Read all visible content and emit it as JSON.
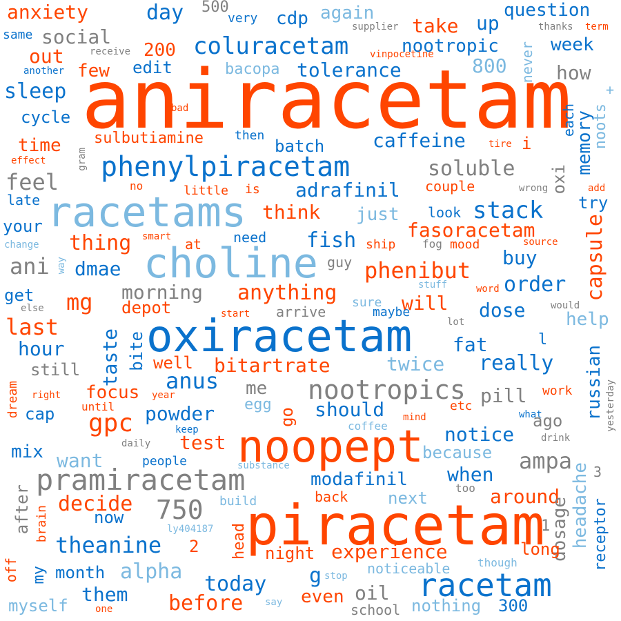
{
  "colors": {
    "orange": "#ff4500",
    "blue": "#0a72cc",
    "light_blue": "#7cb9e0",
    "gray": "#808080"
  },
  "words": [
    {
      "text": "aniracetam",
      "color": "orange"
    },
    {
      "text": "piracetam",
      "color": "orange"
    },
    {
      "text": "noopept",
      "color": "orange"
    },
    {
      "text": "oxiracetam",
      "color": "blue"
    },
    {
      "text": "choline",
      "color": "light_blue"
    },
    {
      "text": "racetams",
      "color": "light_blue"
    },
    {
      "text": "racetam",
      "color": "blue"
    },
    {
      "text": "pramiracetam",
      "color": "gray"
    },
    {
      "text": "phenylpiracetam",
      "color": "blue"
    },
    {
      "text": "nootropics",
      "color": "gray"
    },
    {
      "text": "coluracetam",
      "color": "blue"
    },
    {
      "text": "capsule",
      "color": "orange"
    },
    {
      "text": "russian",
      "color": "blue"
    },
    {
      "text": "gpc",
      "color": "orange"
    },
    {
      "text": "750",
      "color": "gray"
    },
    {
      "text": "anxiety",
      "color": "orange"
    },
    {
      "text": "day",
      "color": "blue"
    },
    {
      "text": "cdp",
      "color": "blue"
    },
    {
      "text": "again",
      "color": "light_blue"
    },
    {
      "text": "take",
      "color": "orange"
    },
    {
      "text": "up",
      "color": "blue"
    },
    {
      "text": "question",
      "color": "blue"
    },
    {
      "text": "500",
      "color": "gray"
    },
    {
      "text": "very",
      "color": "blue"
    },
    {
      "text": "supplier",
      "color": "gray"
    },
    {
      "text": "thanks",
      "color": "gray"
    },
    {
      "text": "term",
      "color": "orange"
    },
    {
      "text": "same",
      "color": "blue"
    },
    {
      "text": "social",
      "color": "gray"
    },
    {
      "text": "nootropic",
      "color": "blue"
    },
    {
      "text": "week",
      "color": "blue"
    },
    {
      "text": "out",
      "color": "orange"
    },
    {
      "text": "receive",
      "color": "gray"
    },
    {
      "text": "200",
      "color": "orange"
    },
    {
      "text": "vinpocetine",
      "color": "orange"
    },
    {
      "text": "never",
      "color": "light_blue"
    },
    {
      "text": "another",
      "color": "blue"
    },
    {
      "text": "few",
      "color": "orange"
    },
    {
      "text": "edit",
      "color": "blue"
    },
    {
      "text": "bacopa",
      "color": "light_blue"
    },
    {
      "text": "tolerance",
      "color": "blue"
    },
    {
      "text": "800",
      "color": "light_blue"
    },
    {
      "text": "how",
      "color": "gray"
    },
    {
      "text": "+",
      "color": "light_blue"
    },
    {
      "text": "sleep",
      "color": "blue"
    },
    {
      "text": "bad",
      "color": "orange"
    },
    {
      "text": "each",
      "color": "blue"
    },
    {
      "text": "noots",
      "color": "light_blue"
    },
    {
      "text": "cycle",
      "color": "blue"
    },
    {
      "text": "memory",
      "color": "blue"
    },
    {
      "text": "time",
      "color": "orange"
    },
    {
      "text": "sulbutiamine",
      "color": "orange"
    },
    {
      "text": "then",
      "color": "blue"
    },
    {
      "text": "caffeine",
      "color": "blue"
    },
    {
      "text": "tire",
      "color": "orange"
    },
    {
      "text": "i",
      "color": "orange"
    },
    {
      "text": "gram",
      "color": "gray"
    },
    {
      "text": "effect",
      "color": "orange"
    },
    {
      "text": "batch",
      "color": "blue"
    },
    {
      "text": "oxi",
      "color": "gray"
    },
    {
      "text": "feel",
      "color": "gray"
    },
    {
      "text": "soluble",
      "color": "gray"
    },
    {
      "text": "no",
      "color": "orange"
    },
    {
      "text": "little",
      "color": "orange"
    },
    {
      "text": "is",
      "color": "orange"
    },
    {
      "text": "adrafinil",
      "color": "blue"
    },
    {
      "text": "couple",
      "color": "orange"
    },
    {
      "text": "wrong",
      "color": "gray"
    },
    {
      "text": "add",
      "color": "orange"
    },
    {
      "text": "late",
      "color": "blue"
    },
    {
      "text": "try",
      "color": "blue"
    },
    {
      "text": "think",
      "color": "orange"
    },
    {
      "text": "just",
      "color": "light_blue"
    },
    {
      "text": "look",
      "color": "blue"
    },
    {
      "text": "stack",
      "color": "blue"
    },
    {
      "text": "your",
      "color": "blue"
    },
    {
      "text": "fasoracetam",
      "color": "orange"
    },
    {
      "text": "smart",
      "color": "orange"
    },
    {
      "text": "need",
      "color": "blue"
    },
    {
      "text": "change",
      "color": "light_blue"
    },
    {
      "text": "thing",
      "color": "orange"
    },
    {
      "text": "at",
      "color": "orange"
    },
    {
      "text": "fish",
      "color": "blue"
    },
    {
      "text": "ship",
      "color": "orange"
    },
    {
      "text": "fog",
      "color": "gray"
    },
    {
      "text": "mood",
      "color": "orange"
    },
    {
      "text": "source",
      "color": "orange"
    },
    {
      "text": "guy",
      "color": "gray"
    },
    {
      "text": "ani",
      "color": "gray"
    },
    {
      "text": "way",
      "color": "light_blue"
    },
    {
      "text": "dmae",
      "color": "blue"
    },
    {
      "text": "phenibut",
      "color": "orange"
    },
    {
      "text": "buy",
      "color": "blue"
    },
    {
      "text": "order",
      "color": "blue"
    },
    {
      "text": "morning",
      "color": "gray"
    },
    {
      "text": "anything",
      "color": "orange"
    },
    {
      "text": "stuff",
      "color": "light_blue"
    },
    {
      "text": "word",
      "color": "orange"
    },
    {
      "text": "get",
      "color": "blue"
    },
    {
      "text": "mg",
      "color": "orange"
    },
    {
      "text": "else",
      "color": "gray"
    },
    {
      "text": "depot",
      "color": "orange"
    },
    {
      "text": "sure",
      "color": "light_blue"
    },
    {
      "text": "will",
      "color": "orange"
    },
    {
      "text": "dose",
      "color": "blue"
    },
    {
      "text": "would",
      "color": "gray"
    },
    {
      "text": "start",
      "color": "orange"
    },
    {
      "text": "arrive",
      "color": "gray"
    },
    {
      "text": "maybe",
      "color": "blue"
    },
    {
      "text": "lot",
      "color": "gray"
    },
    {
      "text": "help",
      "color": "light_blue"
    },
    {
      "text": "l",
      "color": "blue"
    },
    {
      "text": "last",
      "color": "orange"
    },
    {
      "text": "hour",
      "color": "blue"
    },
    {
      "text": "taste",
      "color": "blue"
    },
    {
      "text": "bite",
      "color": "blue"
    },
    {
      "text": "fat",
      "color": "blue"
    },
    {
      "text": "still",
      "color": "gray"
    },
    {
      "text": "well",
      "color": "orange"
    },
    {
      "text": "bitartrate",
      "color": "orange"
    },
    {
      "text": "twice",
      "color": "light_blue"
    },
    {
      "text": "really",
      "color": "blue"
    },
    {
      "text": "anus",
      "color": "blue"
    },
    {
      "text": "me",
      "color": "gray"
    },
    {
      "text": "dream",
      "color": "orange"
    },
    {
      "text": "focus",
      "color": "orange"
    },
    {
      "text": "pill",
      "color": "gray"
    },
    {
      "text": "yesterday",
      "color": "gray"
    },
    {
      "text": "right",
      "color": "orange"
    },
    {
      "text": "year",
      "color": "orange"
    },
    {
      "text": "egg",
      "color": "light_blue"
    },
    {
      "text": "work",
      "color": "orange"
    },
    {
      "text": "cap",
      "color": "blue"
    },
    {
      "text": "until",
      "color": "orange"
    },
    {
      "text": "powder",
      "color": "blue"
    },
    {
      "text": "go",
      "color": "orange"
    },
    {
      "text": "should",
      "color": "blue"
    },
    {
      "text": "etc",
      "color": "orange"
    },
    {
      "text": "what",
      "color": "blue"
    },
    {
      "text": "ago",
      "color": "gray"
    },
    {
      "text": "mind",
      "color": "orange"
    },
    {
      "text": "keep",
      "color": "blue"
    },
    {
      "text": "coffee",
      "color": "light_blue"
    },
    {
      "text": "test",
      "color": "orange"
    },
    {
      "text": "notice",
      "color": "blue"
    },
    {
      "text": "drink",
      "color": "gray"
    },
    {
      "text": "mix",
      "color": "blue"
    },
    {
      "text": "daily",
      "color": "gray"
    },
    {
      "text": "because",
      "color": "light_blue"
    },
    {
      "text": "want",
      "color": "light_blue"
    },
    {
      "text": "people",
      "color": "blue"
    },
    {
      "text": "ampa",
      "color": "gray"
    },
    {
      "text": "substance",
      "color": "light_blue"
    },
    {
      "text": "3",
      "color": "gray"
    },
    {
      "text": "modafinil",
      "color": "blue"
    },
    {
      "text": "when",
      "color": "blue"
    },
    {
      "text": "headache",
      "color": "light_blue"
    },
    {
      "text": "after",
      "color": "gray"
    },
    {
      "text": "back",
      "color": "orange"
    },
    {
      "text": "too",
      "color": "gray"
    },
    {
      "text": "decide",
      "color": "orange"
    },
    {
      "text": "next",
      "color": "light_blue"
    },
    {
      "text": "around",
      "color": "orange"
    },
    {
      "text": "build",
      "color": "light_blue"
    },
    {
      "text": "brain",
      "color": "orange"
    },
    {
      "text": "now",
      "color": "blue"
    },
    {
      "text": "1",
      "color": "gray"
    },
    {
      "text": "dosage",
      "color": "gray"
    },
    {
      "text": "head",
      "color": "orange"
    },
    {
      "text": "receptor",
      "color": "blue"
    },
    {
      "text": "ly404187",
      "color": "light_blue"
    },
    {
      "text": "theanine",
      "color": "blue"
    },
    {
      "text": "2",
      "color": "orange"
    },
    {
      "text": "long",
      "color": "orange"
    },
    {
      "text": "night",
      "color": "orange"
    },
    {
      "text": "experience",
      "color": "orange"
    },
    {
      "text": "off",
      "color": "orange"
    },
    {
      "text": "alpha",
      "color": "light_blue"
    },
    {
      "text": "though",
      "color": "light_blue"
    },
    {
      "text": "my",
      "color": "blue"
    },
    {
      "text": "month",
      "color": "blue"
    },
    {
      "text": "g",
      "color": "blue"
    },
    {
      "text": "today",
      "color": "blue"
    },
    {
      "text": "stop",
      "color": "light_blue"
    },
    {
      "text": "noticeable",
      "color": "light_blue"
    },
    {
      "text": "them",
      "color": "blue"
    },
    {
      "text": "oil",
      "color": "gray"
    },
    {
      "text": "even",
      "color": "orange"
    },
    {
      "text": "myself",
      "color": "light_blue"
    },
    {
      "text": "one",
      "color": "orange"
    },
    {
      "text": "before",
      "color": "orange"
    },
    {
      "text": "say",
      "color": "light_blue"
    },
    {
      "text": "school",
      "color": "gray"
    },
    {
      "text": "nothing",
      "color": "light_blue"
    },
    {
      "text": "300",
      "color": "blue"
    }
  ]
}
